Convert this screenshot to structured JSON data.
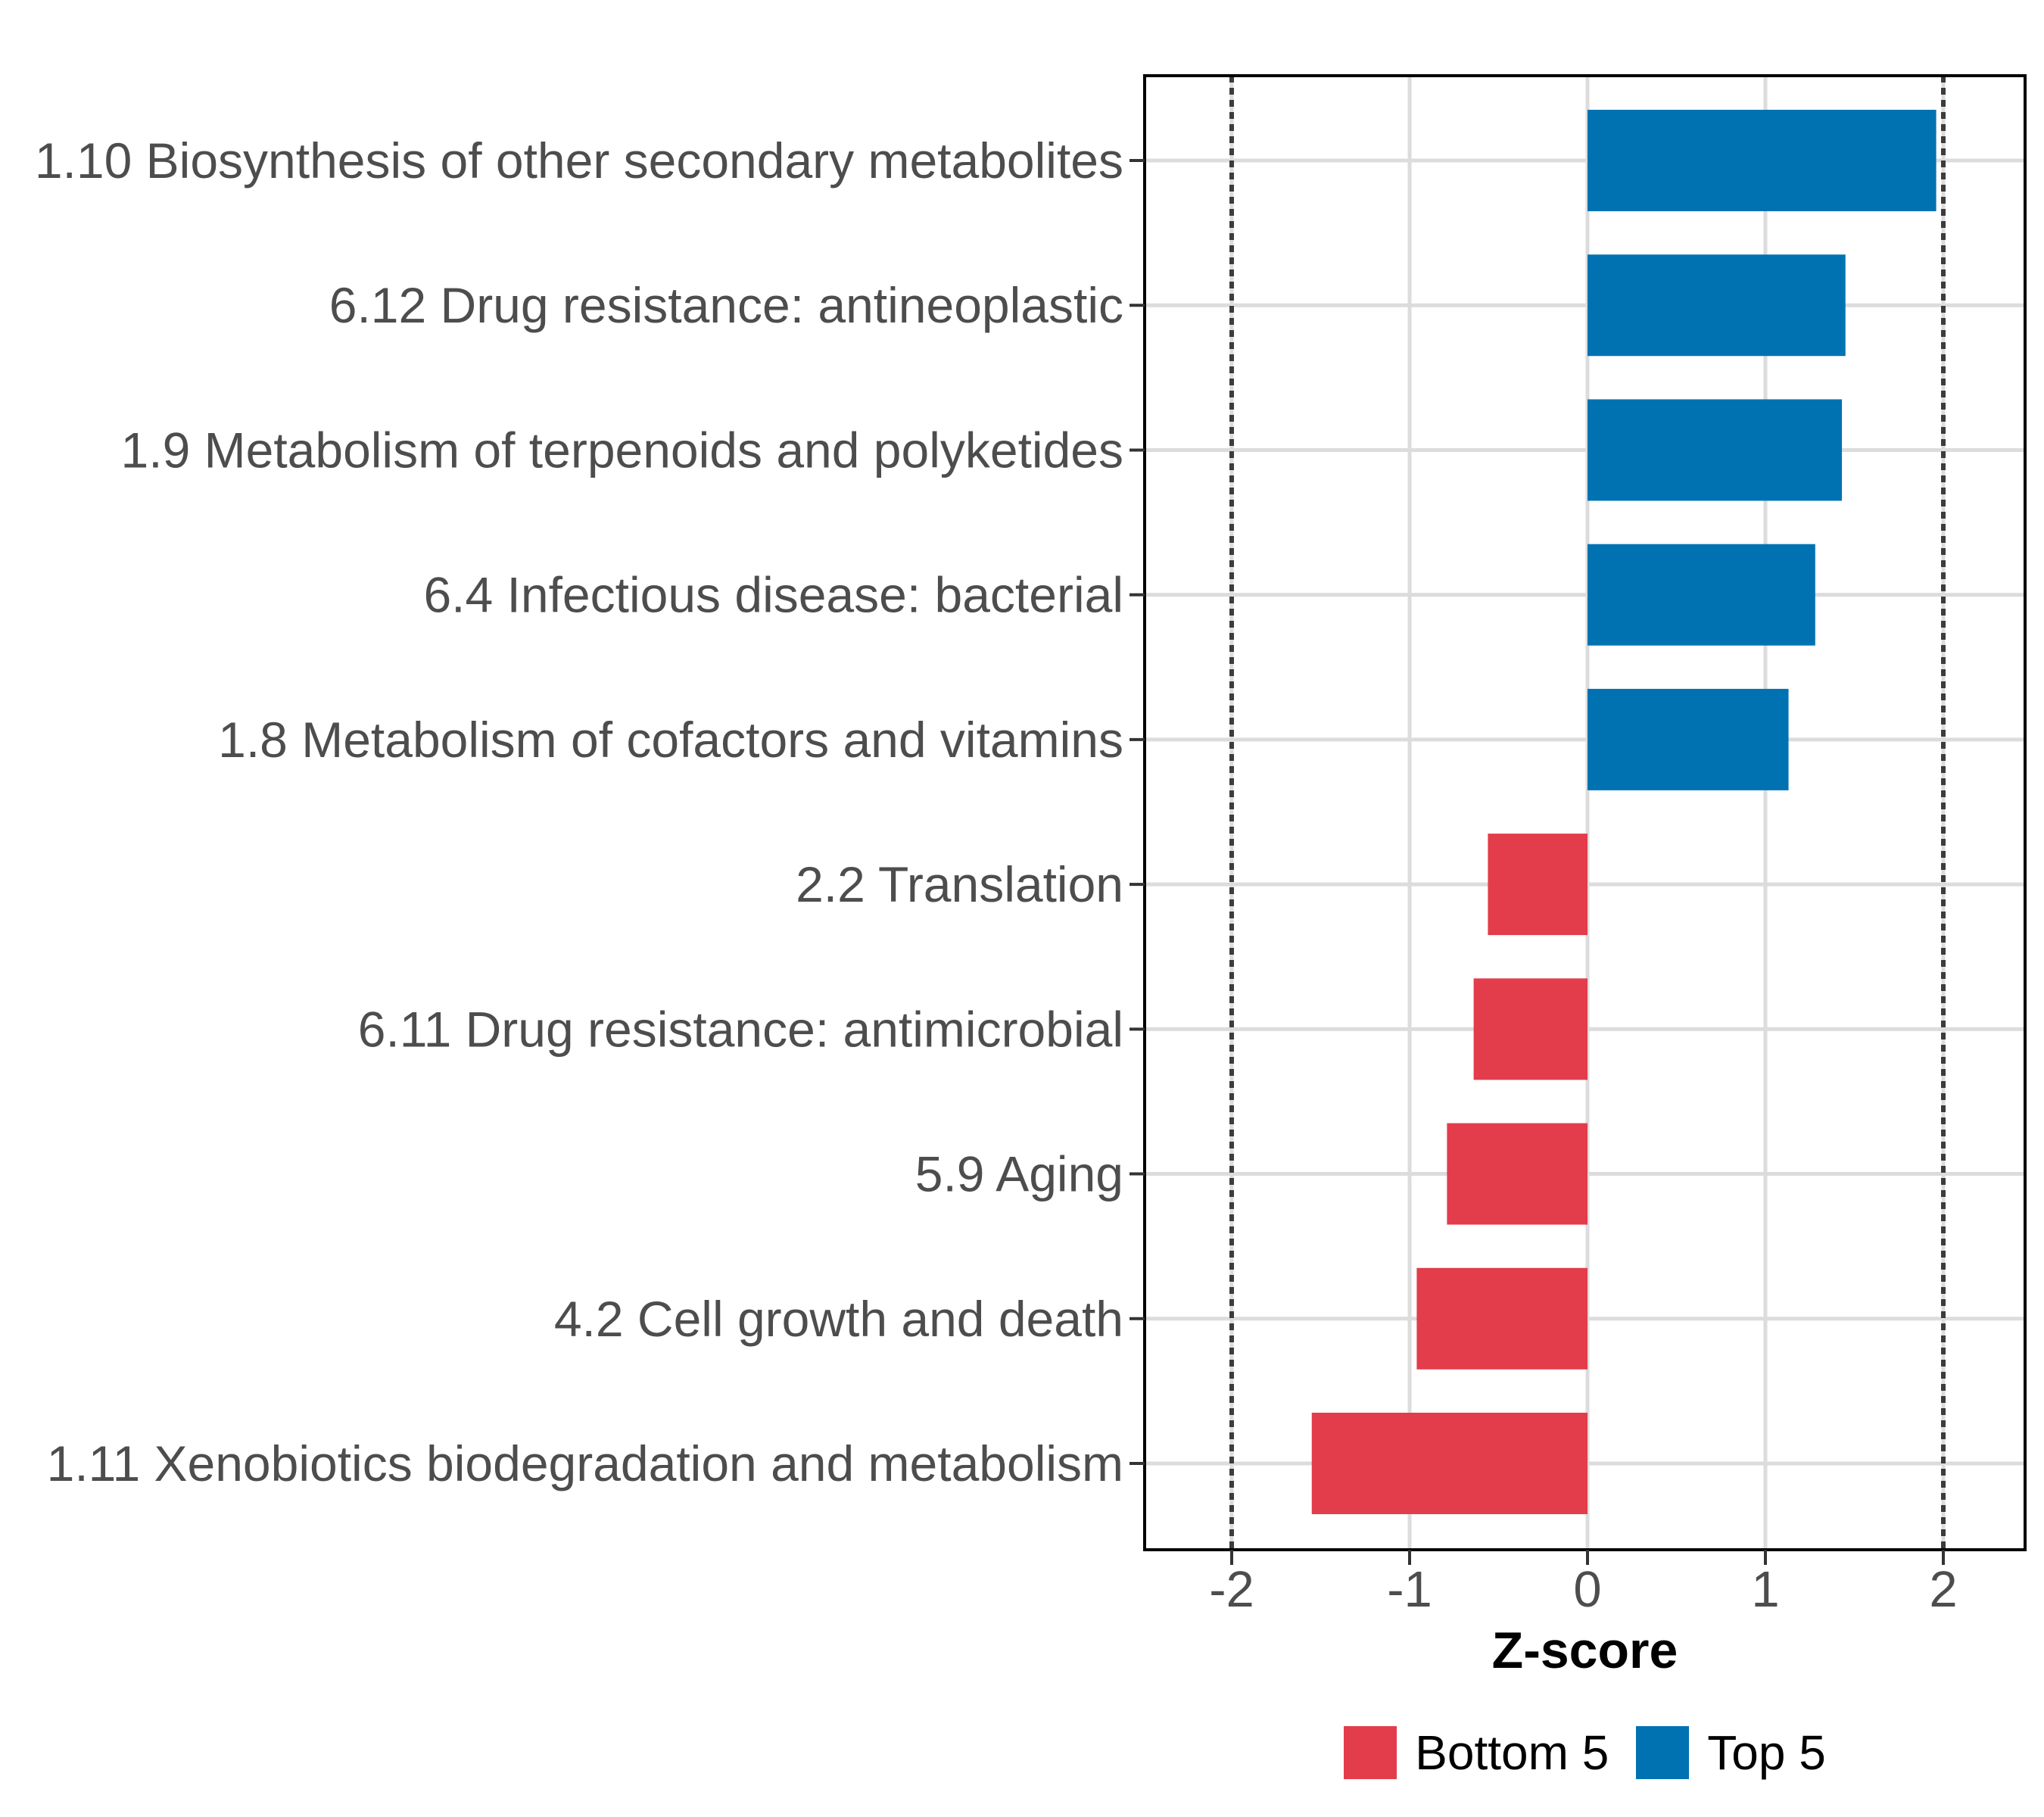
{
  "figure": {
    "background_color": "#FFFFFF"
  },
  "chart_data": {
    "type": "bar",
    "orientation": "horizontal",
    "title": "",
    "xlabel": "Z-score",
    "ylabel": "",
    "categories": [
      "1.10 Biosynthesis of other secondary metabolites",
      "6.12 Drug resistance: antineoplastic",
      "1.9 Metabolism of terpenoids and polyketides",
      "6.4 Infectious disease: bacterial",
      "1.8 Metabolism of cofactors and vitamins",
      "2.2 Translation",
      "6.11 Drug resistance: antimicrobial",
      "5.9 Aging",
      "4.2 Cell growth and death",
      "1.11 Xenobiotics biodegradation and metabolism"
    ],
    "values": [
      1.96,
      1.45,
      1.43,
      1.28,
      1.13,
      -0.56,
      -0.64,
      -0.79,
      -0.96,
      -1.55
    ],
    "groups": [
      "Top 5",
      "Top 5",
      "Top 5",
      "Top 5",
      "Top 5",
      "Bottom 5",
      "Bottom 5",
      "Bottom 5",
      "Bottom 5",
      "Bottom 5"
    ],
    "group_colors": {
      "Top 5": "#0072B2",
      "Bottom 5": "#E33C4B"
    },
    "x_ticks": [
      -2,
      -1,
      0,
      1,
      2
    ],
    "x_tick_labels": [
      "-2",
      "-1",
      "0",
      "1",
      "2"
    ],
    "xlim": [
      -2.45,
      2.45
    ],
    "bar_width_fraction": 0.7,
    "reference_lines": {
      "values": [
        -2,
        2
      ],
      "style": "dotted",
      "color": "#3C3C3C"
    },
    "grid": {
      "show": true,
      "color": "#DCDCDC"
    },
    "panel": {
      "background": "#FFFFFF",
      "border_color": "#000000"
    },
    "axis_text_color": "#4D4D4D",
    "tick_color": "#333333",
    "legend": {
      "position": "bottom",
      "entries": [
        {
          "label": "Bottom 5",
          "color": "#E33C4B"
        },
        {
          "label": "Top 5",
          "color": "#0072B2"
        }
      ]
    }
  }
}
